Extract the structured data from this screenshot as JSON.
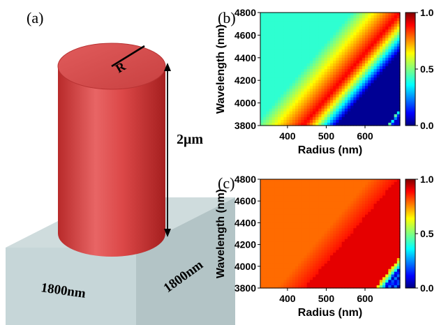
{
  "panels": {
    "a": {
      "label": "(a)",
      "radius_label": "R",
      "height_label": "2μm",
      "width_label_front": "1800nm",
      "width_label_side": "1800nm"
    },
    "b": {
      "label": "(b)"
    },
    "c": {
      "label": "(c)"
    }
  },
  "colors": {
    "cylinder": "#e04a4a",
    "substrate": "#c9d8da",
    "substrate_side": "#b5c6c8"
  },
  "chart_data": [
    {
      "type": "heatmap",
      "panel": "b",
      "xlabel": "Radius (nm)",
      "ylabel": "Wavelength (nm)",
      "xlim": [
        330,
        690
      ],
      "ylim": [
        3800,
        4800
      ],
      "x_ticks": [
        400,
        500,
        600
      ],
      "x_tick_labels": [
        "400",
        "500",
        "600"
      ],
      "y_ticks": [
        3800,
        4000,
        4200,
        4400,
        4600,
        4800
      ],
      "y_tick_labels": [
        "3800",
        "4000",
        "4200",
        "4400",
        "4600",
        "4800"
      ],
      "colorbar": {
        "colormap": "jet",
        "range": [
          0,
          1
        ],
        "ticks": [
          0,
          0.5,
          1
        ],
        "tick_labels": [
          "0.0",
          "0.5",
          "1.0"
        ]
      },
      "resonance": {
        "r0": 440,
        "slope_nm_per_nm": 4.0,
        "dip_offset_nm": 350,
        "second_dip_radius_at_3800": 665
      }
    },
    {
      "type": "heatmap",
      "panel": "c",
      "xlabel": "Radius (nm)",
      "ylabel": "Wavelength (nm)",
      "xlim": [
        330,
        690
      ],
      "ylim": [
        3800,
        4800
      ],
      "x_ticks": [
        400,
        500,
        600
      ],
      "x_tick_labels": [
        "400",
        "500",
        "600"
      ],
      "y_ticks": [
        3800,
        4000,
        4200,
        4400,
        4600,
        4800
      ],
      "y_tick_labels": [
        "3800",
        "4000",
        "4200",
        "4400",
        "4600",
        "4800"
      ],
      "colorbar": {
        "colormap": "jet",
        "range": [
          0,
          1
        ],
        "ticks": [
          0,
          0.5,
          1
        ],
        "tick_labels": [
          "0.0",
          "0.5",
          "1.0"
        ]
      },
      "resonance": {
        "dip_radius_at_3800": 640,
        "slope_nm_per_nm": 4.5
      }
    }
  ]
}
